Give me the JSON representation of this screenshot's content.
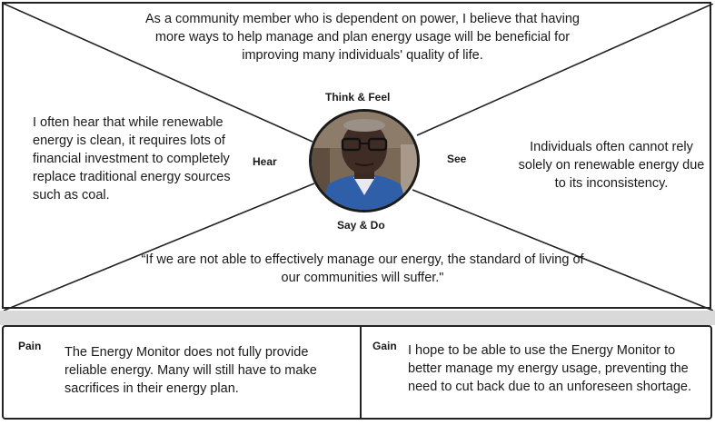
{
  "empathy_map": {
    "labels": {
      "think_feel": "Think & Feel",
      "hear": "Hear",
      "see": "See",
      "say_do": "Say & Do"
    },
    "quadrants": {
      "think_feel": "As a community member who is dependent on power, I believe that having more ways to help manage and plan energy usage will be beneficial for improving many individuals' quality of life.",
      "hear": "I often hear that while renewable energy is clean, it requires lots of financial investment to completely replace traditional energy sources such as coal.",
      "see": "Individuals often cannot rely solely on renewable energy due to its inconsistency.",
      "say_do": "“If we are not able to effectively manage our energy, the standard of living of our communities will suffer.\""
    }
  },
  "pain_gain": {
    "pain_label": "Pain",
    "pain_text": "The Energy Monitor does not fully provide reliable energy. Many will still have to make sacrifices in their energy plan.",
    "gain_label": "Gain",
    "gain_text": "I hope to be able to use the Energy Monitor to better manage my energy usage, preventing the need to cut back due to an unforeseen shortage."
  },
  "colors": {
    "border": "#222222",
    "divider_strip": "#d9d9d9",
    "avatar_shirt": "#2f5fa8"
  }
}
